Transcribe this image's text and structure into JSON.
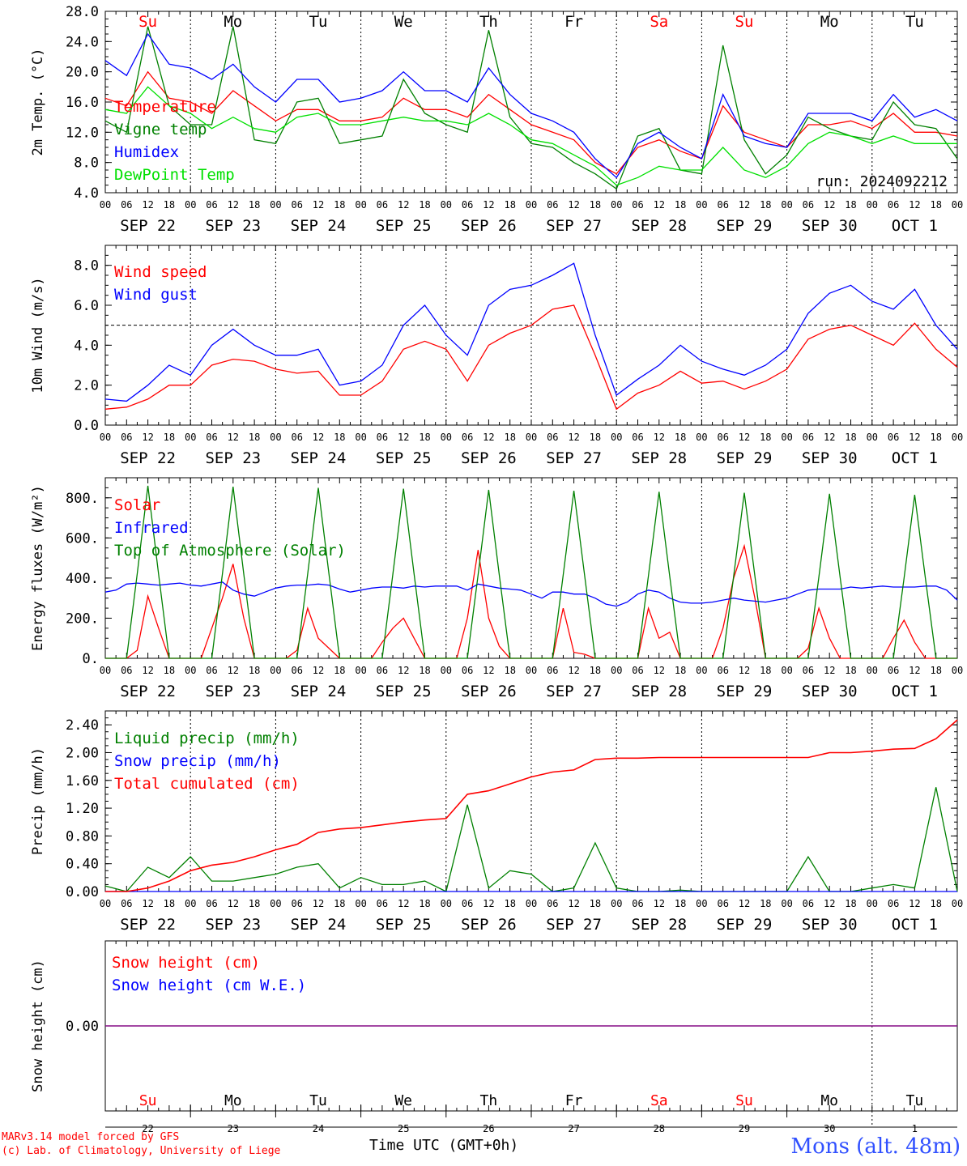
{
  "footer": {
    "credit_line1": "MARv3.14 model forced by GFS",
    "credit_line2": "(c) Lab. of Climatology, University of Liege",
    "time_label": "Time UTC (GMT+0h)",
    "station": "Mons (alt. 48m)"
  },
  "colors": {
    "red": "#ff0000",
    "green": "#008000",
    "blue": "#0000ff",
    "lightgreen": "#00e000",
    "purple": "#800080"
  },
  "shared": {
    "hour_ticks": [
      "00",
      "06",
      "12",
      "18"
    ],
    "day_labels": [
      "SEP 22",
      "SEP 23",
      "SEP 24",
      "SEP 25",
      "SEP 26",
      "SEP 27",
      "SEP 28",
      "SEP 29",
      "SEP 30",
      "OCT  1"
    ],
    "weekdays": [
      {
        "label": "Su",
        "color": "#ff0000"
      },
      {
        "label": "Mo",
        "color": "#000000"
      },
      {
        "label": "Tu",
        "color": "#000000"
      },
      {
        "label": "We",
        "color": "#000000"
      },
      {
        "label": "Th",
        "color": "#000000"
      },
      {
        "label": "Fr",
        "color": "#000000"
      },
      {
        "label": "Sa",
        "color": "#ff0000"
      },
      {
        "label": "Su",
        "color": "#ff0000"
      },
      {
        "label": "Mo",
        "color": "#000000"
      },
      {
        "label": "Tu",
        "color": "#000000"
      }
    ],
    "day_numbers": [
      "22",
      "23",
      "24",
      "25",
      "26",
      "27",
      "28",
      "29",
      "30",
      "1"
    ]
  },
  "chart_data": [
    {
      "type": "line",
      "ylabel": "2m Temp. (°C)",
      "ylim": [
        4,
        28
      ],
      "ytick_labels": [
        "4.0",
        "8.0",
        "12.0",
        "16.0",
        "20.0",
        "24.0",
        "28.0"
      ],
      "annotation": "run: 2024092212",
      "x_hours": [
        0,
        6,
        12,
        18,
        24,
        30,
        36,
        42,
        48,
        54,
        60,
        66,
        72,
        78,
        84,
        90,
        96,
        102,
        108,
        114,
        120,
        126,
        132,
        138,
        144,
        150,
        156,
        162,
        168,
        174,
        180,
        186,
        192,
        198,
        204,
        210,
        216,
        222,
        228,
        234,
        240
      ],
      "series": [
        {
          "name": "Temperature",
          "color": "#ff0000",
          "values": [
            16.5,
            15.5,
            20.0,
            16.5,
            16.0,
            14.5,
            17.5,
            15.5,
            13.5,
            15.0,
            15.0,
            13.5,
            13.5,
            14.0,
            16.5,
            15.0,
            15.0,
            14.0,
            17.0,
            15.0,
            13.0,
            12.0,
            11.0,
            8.0,
            6.5,
            10.0,
            11.0,
            9.5,
            8.5,
            15.5,
            12.0,
            11.0,
            10.0,
            13.0,
            13.0,
            13.5,
            12.5,
            14.5,
            12.0,
            12.0,
            11.5
          ]
        },
        {
          "name": "Vigne temp",
          "color": "#008000",
          "values": [
            13.5,
            12.0,
            26.0,
            15.5,
            13.0,
            13.0,
            26.0,
            11.0,
            10.5,
            16.0,
            16.5,
            10.5,
            11.0,
            11.5,
            19.0,
            14.5,
            13.0,
            12.0,
            25.5,
            14.0,
            10.5,
            10.0,
            8.0,
            6.5,
            4.5,
            11.5,
            12.5,
            7.0,
            6.5,
            23.5,
            11.0,
            6.5,
            9.0,
            14.0,
            12.5,
            11.5,
            11.0,
            16.0,
            13.0,
            12.5,
            8.5
          ]
        },
        {
          "name": "Humidex",
          "color": "#0000ff",
          "values": [
            21.5,
            19.5,
            25.0,
            21.0,
            20.5,
            19.0,
            21.0,
            18.0,
            16.0,
            19.0,
            19.0,
            16.0,
            16.5,
            17.5,
            20.0,
            17.5,
            17.5,
            16.0,
            20.5,
            17.0,
            14.5,
            13.5,
            12.0,
            8.5,
            6.0,
            10.5,
            12.0,
            10.0,
            8.5,
            17.0,
            11.5,
            10.5,
            10.0,
            14.5,
            14.5,
            14.5,
            13.5,
            17.0,
            14.0,
            15.0,
            13.5
          ]
        },
        {
          "name": "DewPoint Temp",
          "color": "#00e000",
          "values": [
            15.0,
            14.5,
            18.0,
            15.5,
            14.5,
            12.5,
            14.0,
            12.5,
            12.0,
            14.0,
            14.5,
            13.0,
            13.0,
            13.5,
            14.0,
            13.5,
            13.5,
            13.0,
            14.5,
            13.0,
            11.0,
            10.5,
            9.0,
            7.5,
            5.0,
            6.0,
            7.5,
            7.0,
            7.0,
            10.0,
            7.0,
            6.0,
            7.5,
            10.5,
            12.0,
            11.5,
            10.5,
            11.5,
            10.5,
            10.5,
            10.5
          ]
        }
      ]
    },
    {
      "type": "line",
      "ylabel": "10m Wind (m/s)",
      "ylim": [
        0,
        9
      ],
      "ytick_labels": [
        "0.0",
        "2.0",
        "4.0",
        "6.0",
        "8.0"
      ],
      "reference_line": 5,
      "x_hours": [
        0,
        6,
        12,
        18,
        24,
        30,
        36,
        42,
        48,
        54,
        60,
        66,
        72,
        78,
        84,
        90,
        96,
        102,
        108,
        114,
        120,
        126,
        132,
        138,
        144,
        150,
        156,
        162,
        168,
        174,
        180,
        186,
        192,
        198,
        204,
        210,
        216,
        222,
        228,
        234,
        240
      ],
      "series": [
        {
          "name": "Wind speed",
          "color": "#ff0000",
          "values": [
            0.8,
            0.9,
            1.3,
            2.0,
            2.0,
            3.0,
            3.3,
            3.2,
            2.8,
            2.6,
            2.7,
            1.5,
            1.5,
            2.2,
            3.8,
            4.2,
            3.8,
            2.2,
            4.0,
            4.6,
            5.0,
            5.8,
            6.0,
            3.5,
            0.8,
            1.6,
            2.0,
            2.7,
            2.1,
            2.2,
            1.8,
            2.2,
            2.8,
            4.3,
            4.8,
            5.0,
            4.5,
            4.0,
            5.1,
            3.8,
            2.9
          ]
        },
        {
          "name": "Wind gust",
          "color": "#0000ff",
          "values": [
            1.3,
            1.2,
            2.0,
            3.0,
            2.5,
            4.0,
            4.8,
            4.0,
            3.5,
            3.5,
            3.8,
            2.0,
            2.2,
            3.0,
            5.0,
            6.0,
            4.5,
            3.5,
            6.0,
            6.8,
            7.0,
            7.5,
            8.1,
            4.5,
            1.5,
            2.3,
            3.0,
            4.0,
            3.2,
            2.8,
            2.5,
            3.0,
            3.8,
            5.6,
            6.6,
            7.0,
            6.2,
            5.8,
            6.8,
            5.0,
            3.8
          ]
        }
      ]
    },
    {
      "type": "line",
      "ylabel": "Energy fluxes (W/m²)",
      "ylim": [
        0,
        900
      ],
      "ytick_labels": [
        "0.",
        "200.",
        "400.",
        "600.",
        "800."
      ],
      "x_hours": [
        0,
        3,
        6,
        9,
        12,
        15,
        18,
        21,
        24,
        27,
        30,
        33,
        36,
        39,
        42,
        45,
        48,
        51,
        54,
        57,
        60,
        63,
        66,
        69,
        72,
        75,
        78,
        81,
        84,
        87,
        90,
        93,
        96,
        99,
        102,
        105,
        108,
        111,
        114,
        117,
        120,
        123,
        126,
        129,
        132,
        135,
        138,
        141,
        144,
        147,
        150,
        153,
        156,
        159,
        162,
        165,
        168,
        171,
        174,
        177,
        180,
        183,
        186,
        189,
        192,
        195,
        198,
        201,
        204,
        207,
        210,
        213,
        216,
        219,
        222,
        225,
        228,
        231,
        234,
        237,
        240
      ],
      "series": [
        {
          "name": "Solar",
          "color": "#ff0000",
          "values": [
            0,
            0,
            0,
            40,
            310,
            150,
            0,
            0,
            0,
            0,
            150,
            300,
            470,
            200,
            0,
            0,
            0,
            0,
            40,
            250,
            100,
            50,
            0,
            0,
            0,
            0,
            80,
            150,
            200,
            100,
            0,
            0,
            0,
            0,
            200,
            540,
            200,
            60,
            0,
            0,
            0,
            0,
            0,
            250,
            30,
            20,
            0,
            0,
            0,
            0,
            0,
            250,
            100,
            130,
            0,
            0,
            0,
            0,
            150,
            400,
            560,
            300,
            0,
            0,
            0,
            0,
            50,
            250,
            100,
            0,
            0,
            0,
            0,
            0,
            100,
            190,
            80,
            0,
            0,
            0,
            0
          ]
        },
        {
          "name": "Infrared",
          "color": "#0000ff",
          "values": [
            330,
            340,
            370,
            375,
            370,
            365,
            370,
            375,
            365,
            360,
            370,
            380,
            340,
            320,
            310,
            330,
            350,
            360,
            365,
            365,
            370,
            365,
            345,
            330,
            340,
            350,
            355,
            355,
            350,
            360,
            355,
            360,
            360,
            360,
            340,
            370,
            360,
            350,
            345,
            340,
            320,
            300,
            330,
            330,
            320,
            320,
            300,
            270,
            260,
            280,
            320,
            340,
            330,
            300,
            280,
            275,
            275,
            280,
            290,
            300,
            290,
            285,
            280,
            290,
            300,
            320,
            340,
            345,
            345,
            345,
            355,
            350,
            355,
            360,
            355,
            355,
            355,
            360,
            360,
            340,
            290
          ]
        },
        {
          "name": "Top of Atmosphere (Solar)",
          "color": "#008000",
          "values": [
            0,
            0,
            0,
            420,
            860,
            420,
            0,
            0,
            0,
            0,
            0,
            420,
            855,
            420,
            0,
            0,
            0,
            0,
            0,
            420,
            850,
            420,
            0,
            0,
            0,
            0,
            0,
            420,
            845,
            420,
            0,
            0,
            0,
            0,
            0,
            415,
            840,
            415,
            0,
            0,
            0,
            0,
            0,
            415,
            835,
            415,
            0,
            0,
            0,
            0,
            0,
            410,
            830,
            410,
            0,
            0,
            0,
            0,
            0,
            410,
            825,
            410,
            0,
            0,
            0,
            0,
            0,
            405,
            820,
            405,
            0,
            0,
            0,
            0,
            0,
            400,
            815,
            400,
            0,
            0,
            0
          ]
        }
      ]
    },
    {
      "type": "line",
      "ylabel": "Precip (mm/h)",
      "ylim": [
        0,
        2.6
      ],
      "ytick_labels": [
        "0.00",
        "0.40",
        "0.80",
        "1.20",
        "1.60",
        "2.00",
        "2.40"
      ],
      "x_hours": [
        0,
        6,
        12,
        18,
        24,
        30,
        36,
        42,
        48,
        54,
        60,
        66,
        72,
        78,
        84,
        90,
        96,
        102,
        108,
        114,
        120,
        126,
        132,
        138,
        144,
        150,
        156,
        162,
        168,
        174,
        180,
        186,
        192,
        198,
        204,
        210,
        216,
        222,
        228,
        234,
        240
      ],
      "series": [
        {
          "name": "Liquid precip (mm/h)",
          "color": "#008000",
          "values": [
            0.08,
            0.0,
            0.35,
            0.2,
            0.5,
            0.15,
            0.15,
            0.2,
            0.25,
            0.35,
            0.4,
            0.05,
            0.2,
            0.1,
            0.1,
            0.15,
            0.0,
            1.25,
            0.05,
            0.3,
            0.25,
            0.0,
            0.05,
            0.7,
            0.05,
            0.0,
            0.0,
            0.02,
            0.0,
            0.0,
            0.0,
            0.0,
            0.0,
            0.5,
            0.0,
            0.0,
            0.05,
            0.1,
            0.05,
            1.5,
            0.0
          ]
        },
        {
          "name": "Snow precip (mm/h)",
          "color": "#0000ff",
          "values": [
            0,
            0,
            0,
            0,
            0,
            0,
            0,
            0,
            0,
            0,
            0,
            0,
            0,
            0,
            0,
            0,
            0,
            0,
            0,
            0,
            0,
            0,
            0,
            0,
            0,
            0,
            0,
            0,
            0,
            0,
            0,
            0,
            0,
            0,
            0,
            0,
            0,
            0,
            0,
            0,
            0
          ]
        },
        {
          "name": "Total cumulated (cm)",
          "color": "#ff0000",
          "values": [
            0.0,
            0.0,
            0.05,
            0.15,
            0.3,
            0.38,
            0.42,
            0.5,
            0.6,
            0.68,
            0.85,
            0.9,
            0.92,
            0.96,
            1.0,
            1.03,
            1.05,
            1.4,
            1.45,
            1.55,
            1.65,
            1.72,
            1.75,
            1.9,
            1.92,
            1.92,
            1.93,
            1.93,
            1.93,
            1.93,
            1.93,
            1.93,
            1.93,
            1.93,
            2.0,
            2.0,
            2.02,
            2.05,
            2.06,
            2.2,
            2.47
          ]
        }
      ]
    },
    {
      "type": "line",
      "ylabel": "Snow height (cm)",
      "ytick_labels": [
        "0.00"
      ],
      "x_hours": [
        0,
        240
      ],
      "series": [
        {
          "name": "Snow height (cm)",
          "color": "#ff0000",
          "values": [
            0,
            0
          ]
        },
        {
          "name": "Snow height (cm W.E.)",
          "color": "#0000ff",
          "values": [
            0,
            0
          ]
        }
      ]
    }
  ]
}
